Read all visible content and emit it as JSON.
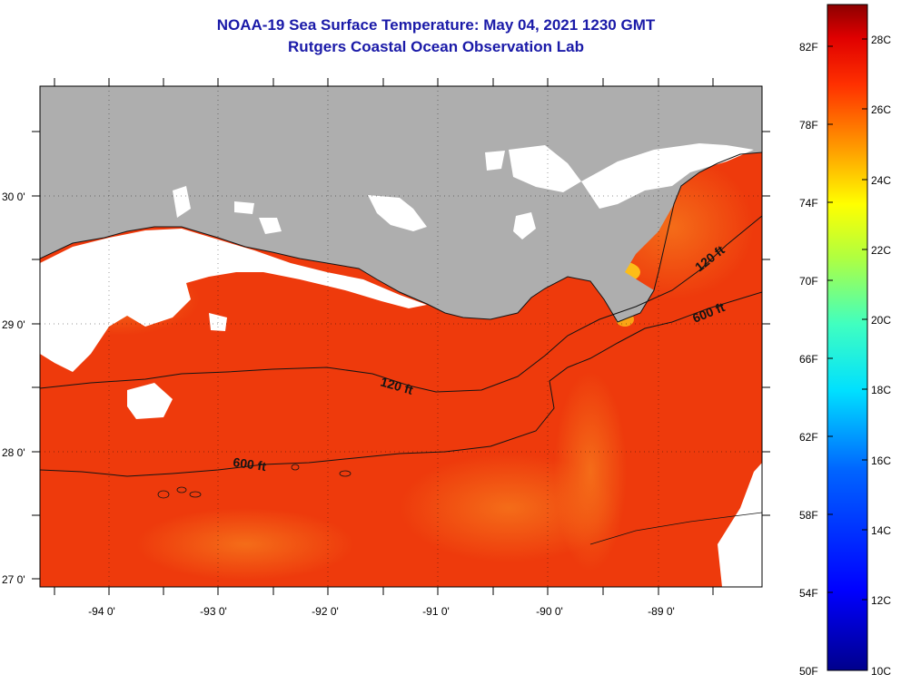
{
  "title": "NOAA-19 Sea Surface Temperature:  May 04, 2021 1230 GMT",
  "subtitle": "Rutgers Coastal Ocean Observation Lab",
  "colors": {
    "title": "#1a1aa8",
    "land": "#aeaeae",
    "cloud": "#ffffff",
    "sea_warm": "#ee3a0c",
    "sea_orange": "#f36a14",
    "sea_yellow": "#ffd21a",
    "contour": "#141414"
  },
  "map": {
    "lon_labels": [
      "-94 0'",
      "-93 0'",
      "-92 0'",
      "-91 0'",
      "-90 0'",
      "-89 0'"
    ],
    "lat_labels": [
      "30 0'",
      "29 0'",
      "28 0'",
      "27 0'"
    ],
    "contours": [
      {
        "label": "120 ft"
      },
      {
        "label": "600 ft"
      },
      {
        "label": "120 ft"
      },
      {
        "label": "600 ft"
      }
    ]
  },
  "colorbar": {
    "fahrenheit_labels": [
      "82F",
      "78F",
      "74F",
      "70F",
      "66F",
      "62F",
      "58F",
      "54F",
      "50F"
    ],
    "celsius_labels": [
      "28C",
      "26C",
      "24C",
      "22C",
      "20C",
      "18C",
      "16C",
      "14C",
      "12C",
      "10C"
    ]
  }
}
